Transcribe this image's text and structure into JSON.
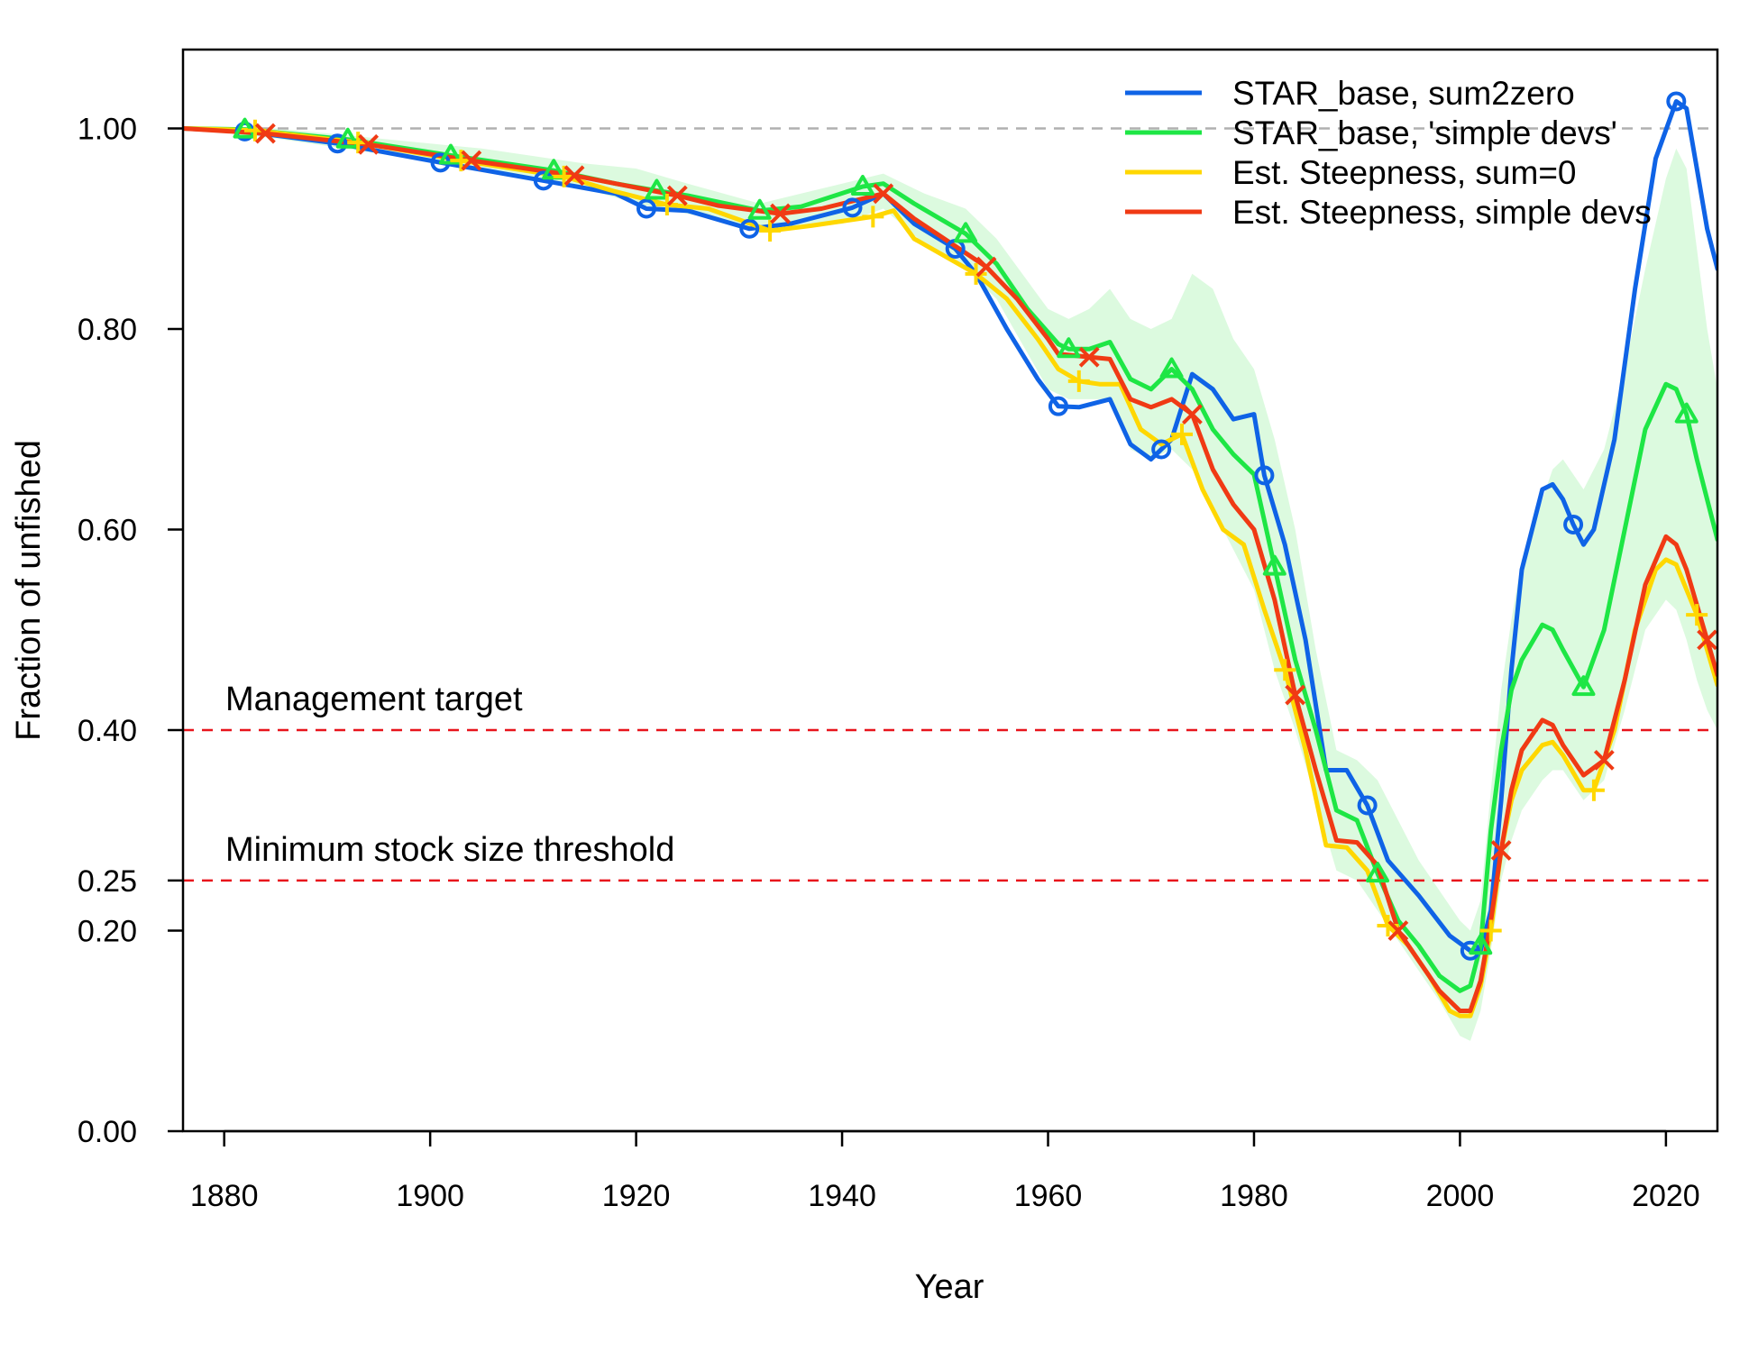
{
  "chart_data": {
    "type": "line",
    "title": "",
    "xlabel": "Year",
    "ylabel": "Fraction of unfished",
    "xlim": [
      1876,
      2025
    ],
    "ylim": [
      0,
      1.07
    ],
    "x_ticks": [
      1880,
      1900,
      1920,
      1940,
      1960,
      1980,
      2000,
      2020
    ],
    "x_tick_labels": [
      "1880",
      "1900",
      "1920",
      "1940",
      "1960",
      "1980",
      "2000",
      "2020"
    ],
    "y_ticks": [
      0,
      0.2,
      0.25,
      0.4,
      0.6,
      0.8,
      1.0
    ],
    "y_tick_labels": [
      "0.00",
      "0.20",
      "0.25",
      "0.40",
      "0.60",
      "0.80",
      "1.00"
    ],
    "legend_position": "top-right",
    "reference_lines": [
      {
        "y": 1.0,
        "color": "#b0b0b0",
        "label": ""
      },
      {
        "y": 0.4,
        "color": "#e8141c",
        "label": "Management target"
      },
      {
        "y": 0.25,
        "color": "#e8141c",
        "label": "Minimum stock size threshold"
      }
    ],
    "band": {
      "color": "#dcfadf",
      "x": [
        1876,
        1885,
        1895,
        1905,
        1915,
        1920,
        1925,
        1932,
        1940,
        1944,
        1948,
        1952,
        1955,
        1960,
        1962,
        1964,
        1966,
        1968,
        1970,
        1972,
        1974,
        1976,
        1978,
        1980,
        1982,
        1984,
        1986,
        1988,
        1990,
        1992,
        1994,
        1996,
        1998,
        2000,
        2001,
        2002,
        2003,
        2004,
        2005,
        2006,
        2008,
        2009,
        2010,
        2012,
        2014,
        2016,
        2018,
        2020,
        2021,
        2022,
        2023,
        2024,
        2025
      ],
      "lower": [
        1.0,
        0.99,
        0.975,
        0.96,
        0.94,
        0.925,
        0.915,
        0.9,
        0.905,
        0.92,
        0.885,
        0.86,
        0.83,
        0.74,
        0.73,
        0.73,
        0.73,
        0.68,
        0.67,
        0.68,
        0.66,
        0.62,
        0.58,
        0.54,
        0.46,
        0.4,
        0.33,
        0.26,
        0.25,
        0.22,
        0.19,
        0.16,
        0.13,
        0.095,
        0.09,
        0.12,
        0.18,
        0.25,
        0.29,
        0.32,
        0.35,
        0.36,
        0.36,
        0.33,
        0.35,
        0.42,
        0.5,
        0.53,
        0.52,
        0.49,
        0.45,
        0.42,
        0.4
      ],
      "upper": [
        1.0,
        1.0,
        0.99,
        0.98,
        0.965,
        0.96,
        0.945,
        0.925,
        0.945,
        0.955,
        0.935,
        0.92,
        0.89,
        0.82,
        0.81,
        0.82,
        0.84,
        0.81,
        0.8,
        0.81,
        0.855,
        0.84,
        0.79,
        0.76,
        0.69,
        0.6,
        0.48,
        0.38,
        0.37,
        0.35,
        0.31,
        0.27,
        0.24,
        0.21,
        0.2,
        0.23,
        0.34,
        0.44,
        0.51,
        0.57,
        0.63,
        0.66,
        0.67,
        0.64,
        0.68,
        0.76,
        0.86,
        0.95,
        0.98,
        0.96,
        0.88,
        0.8,
        0.74
      ]
    },
    "series": [
      {
        "name": "STAR_base, sum2zero",
        "color": "#0f63e6",
        "marker": "circle",
        "x": [
          1876,
          1882,
          1891,
          1901,
          1911,
          1918,
          1921,
          1925,
          1931,
          1935,
          1941,
          1944,
          1947,
          1951,
          1953,
          1956,
          1959,
          1961,
          1963,
          1966,
          1968,
          1970,
          1972,
          1974,
          1976,
          1978,
          1980,
          1981,
          1983,
          1985,
          1987,
          1989,
          1991,
          1993,
          1996,
          1999,
          2001,
          2002,
          2003,
          2004,
          2005,
          2006,
          2008,
          2009,
          2010,
          2011,
          2012,
          2013,
          2015,
          2017,
          2019,
          2021,
          2022,
          2023,
          2024,
          2025
        ],
        "y": [
          1.0,
          0.997,
          0.985,
          0.966,
          0.948,
          0.935,
          0.92,
          0.918,
          0.9,
          0.905,
          0.921,
          0.935,
          0.905,
          0.88,
          0.855,
          0.8,
          0.75,
          0.723,
          0.722,
          0.73,
          0.685,
          0.67,
          0.69,
          0.755,
          0.74,
          0.71,
          0.715,
          0.654,
          0.585,
          0.49,
          0.36,
          0.36,
          0.325,
          0.27,
          0.235,
          0.195,
          0.18,
          0.18,
          0.22,
          0.33,
          0.46,
          0.56,
          0.64,
          0.645,
          0.63,
          0.605,
          0.585,
          0.6,
          0.69,
          0.84,
          0.97,
          1.027,
          1.02,
          0.96,
          0.9,
          0.86
        ],
        "marker_x": [
          1882,
          1891,
          1901,
          1911,
          1921,
          1931,
          1941,
          1951,
          1961,
          1971,
          1981,
          1991,
          2001,
          2011,
          2021
        ]
      },
      {
        "name": "STAR_base, 'simple devs'",
        "color": "#1ee645",
        "marker": "triangle",
        "x": [
          1876,
          1882,
          1892,
          1902,
          1912,
          1918,
          1922,
          1925,
          1932,
          1936,
          1942,
          1944,
          1947,
          1952,
          1955,
          1958,
          1961,
          1962,
          1964,
          1966,
          1968,
          1970,
          1972,
          1974,
          1976,
          1978,
          1980,
          1982,
          1984,
          1986,
          1988,
          1990,
          1992,
          1994,
          1996,
          1998,
          2000,
          2001,
          2002,
          2003,
          2004,
          2005,
          2006,
          2008,
          2009,
          2010,
          2012,
          2014,
          2016,
          2018,
          2020,
          2021,
          2022,
          2023,
          2024,
          2025
        ],
        "y": [
          1.0,
          0.999,
          0.989,
          0.973,
          0.958,
          0.945,
          0.938,
          0.933,
          0.918,
          0.922,
          0.942,
          0.945,
          0.925,
          0.895,
          0.865,
          0.82,
          0.785,
          0.78,
          0.78,
          0.787,
          0.75,
          0.74,
          0.76,
          0.74,
          0.7,
          0.675,
          0.655,
          0.563,
          0.47,
          0.4,
          0.32,
          0.31,
          0.257,
          0.21,
          0.185,
          0.155,
          0.14,
          0.145,
          0.185,
          0.3,
          0.38,
          0.44,
          0.47,
          0.505,
          0.5,
          0.48,
          0.443,
          0.5,
          0.6,
          0.7,
          0.745,
          0.74,
          0.715,
          0.67,
          0.63,
          0.59
        ],
        "marker_x": [
          1882,
          1892,
          1902,
          1912,
          1922,
          1932,
          1942,
          1952,
          1962,
          1972,
          1982,
          1992,
          2002,
          2012,
          2022
        ]
      },
      {
        "name": "Est. Steepness, sum=0",
        "color": "#ffd700",
        "marker": "plus",
        "x": [
          1876,
          1883,
          1893,
          1903,
          1913,
          1918,
          1923,
          1927,
          1933,
          1937,
          1943,
          1945,
          1947,
          1953,
          1956,
          1959,
          1961,
          1963,
          1965,
          1967,
          1969,
          1971,
          1973,
          1975,
          1977,
          1979,
          1981,
          1983,
          1985,
          1987,
          1989,
          1991,
          1993,
          1995,
          1997,
          1999,
          2000,
          2001,
          2002,
          2003,
          2004,
          2005,
          2006,
          2008,
          2009,
          2010,
          2012,
          2013,
          2015,
          2017,
          2019,
          2020,
          2021,
          2023,
          2025
        ],
        "y": [
          1.0,
          0.998,
          0.986,
          0.968,
          0.952,
          0.937,
          0.924,
          0.92,
          0.898,
          0.903,
          0.912,
          0.918,
          0.89,
          0.855,
          0.83,
          0.79,
          0.76,
          0.748,
          0.745,
          0.745,
          0.7,
          0.685,
          0.695,
          0.64,
          0.6,
          0.585,
          0.52,
          0.46,
          0.38,
          0.285,
          0.283,
          0.26,
          0.205,
          0.185,
          0.155,
          0.12,
          0.115,
          0.115,
          0.145,
          0.2,
          0.28,
          0.33,
          0.36,
          0.385,
          0.388,
          0.375,
          0.34,
          0.34,
          0.4,
          0.5,
          0.56,
          0.57,
          0.565,
          0.515,
          0.445
        ],
        "marker_x": [
          1883,
          1893,
          1903,
          1913,
          1923,
          1933,
          1943,
          1953,
          1963,
          1973,
          1983,
          1993,
          2003,
          2013,
          2023
        ]
      },
      {
        "name": "Est. Steepness, simple devs",
        "color": "#f03a14",
        "marker": "x",
        "x": [
          1876,
          1884,
          1894,
          1904,
          1914,
          1918,
          1924,
          1928,
          1934,
          1938,
          1944,
          1947,
          1954,
          1957,
          1960,
          1961,
          1964,
          1966,
          1968,
          1970,
          1972,
          1974,
          1976,
          1978,
          1980,
          1982,
          1984,
          1986,
          1988,
          1990,
          1992,
          1994,
          1996,
          1998,
          2000,
          2001,
          2002,
          2003,
          2004,
          2005,
          2006,
          2008,
          2009,
          2010,
          2012,
          2014,
          2016,
          2018,
          2020,
          2021,
          2022,
          2024,
          2025
        ],
        "y": [
          1.0,
          0.995,
          0.984,
          0.968,
          0.953,
          0.945,
          0.933,
          0.923,
          0.915,
          0.92,
          0.935,
          0.91,
          0.862,
          0.83,
          0.79,
          0.775,
          0.772,
          0.77,
          0.73,
          0.722,
          0.73,
          0.715,
          0.66,
          0.625,
          0.6,
          0.53,
          0.435,
          0.36,
          0.29,
          0.288,
          0.265,
          0.2,
          0.17,
          0.14,
          0.12,
          0.12,
          0.15,
          0.21,
          0.28,
          0.34,
          0.38,
          0.41,
          0.405,
          0.385,
          0.355,
          0.37,
          0.45,
          0.545,
          0.593,
          0.585,
          0.56,
          0.49,
          0.455
        ],
        "marker_x": [
          1884,
          1894,
          1904,
          1914,
          1924,
          1934,
          1944,
          1954,
          1964,
          1974,
          1984,
          1994,
          2004,
          2014,
          2024
        ]
      }
    ]
  }
}
